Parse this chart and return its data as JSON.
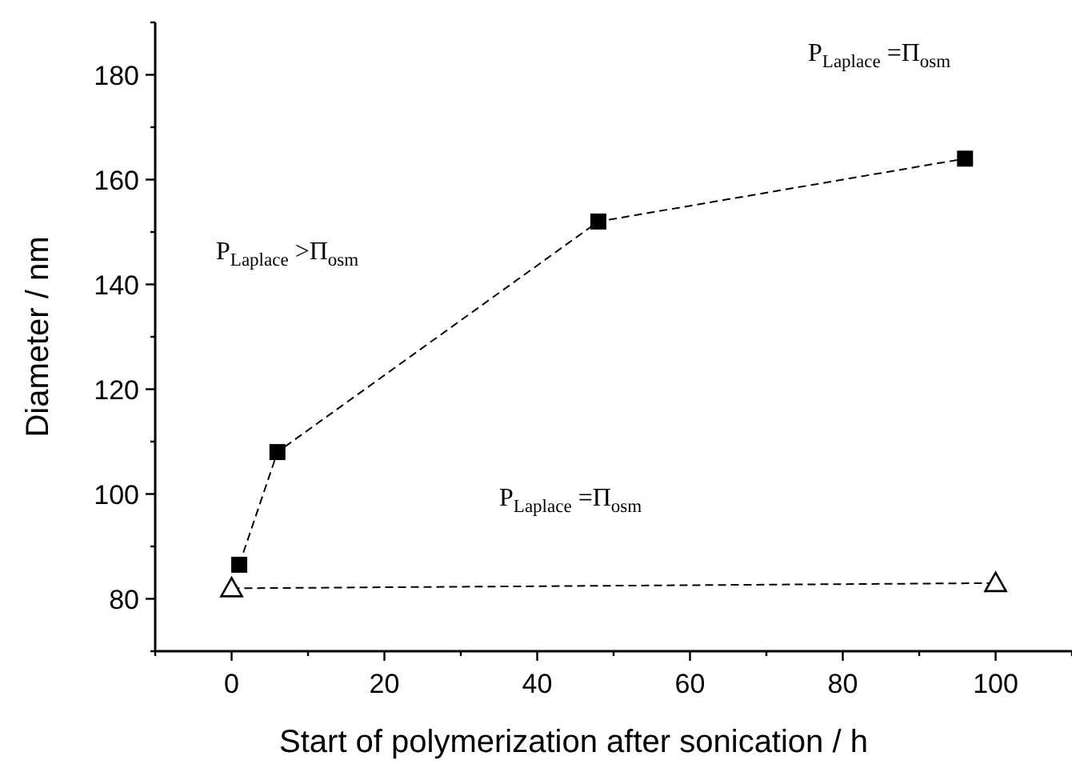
{
  "chart_data": {
    "type": "line",
    "xlabel": "Start of polymerization after sonication / h",
    "ylabel": "Diameter / nm",
    "xlim": [
      -10,
      110
    ],
    "ylim": [
      70,
      190
    ],
    "xticks": [
      {
        "value": -10,
        "label": null
      },
      0,
      {
        "value": 10,
        "label": null
      },
      20,
      {
        "value": 30,
        "label": null
      },
      40,
      {
        "value": 50,
        "label": null
      },
      60,
      {
        "value": 70,
        "label": null
      },
      80,
      {
        "value": 90,
        "label": null
      },
      100,
      {
        "value": 110,
        "label": null
      }
    ],
    "yticks": [
      {
        "value": 70,
        "label": null
      },
      80,
      {
        "value": 90,
        "label": null
      },
      100,
      {
        "value": 110,
        "label": null
      },
      120,
      {
        "value": 130,
        "label": null
      },
      140,
      {
        "value": 150,
        "label": null
      },
      160,
      {
        "value": 170,
        "label": null
      },
      180,
      {
        "value": 190,
        "label": null
      }
    ],
    "grid": false,
    "line_style": "dashed",
    "series": [
      {
        "color": "#000000",
        "marker": "square",
        "x": [
          1,
          6,
          48,
          96
        ],
        "values": [
          86.5,
          108,
          152,
          164
        ]
      },
      {
        "color": "#000000",
        "marker": "triangle",
        "x": [
          0,
          100
        ],
        "values": [
          82,
          83
        ]
      }
    ],
    "annotations": [
      "P$_{Laplace}$ =Π$_{osm}$",
      "P$_{Laplace}$ >Π$_{osm}$",
      "P$_{Laplace}$ =Π$_{osm}$"
    ]
  }
}
